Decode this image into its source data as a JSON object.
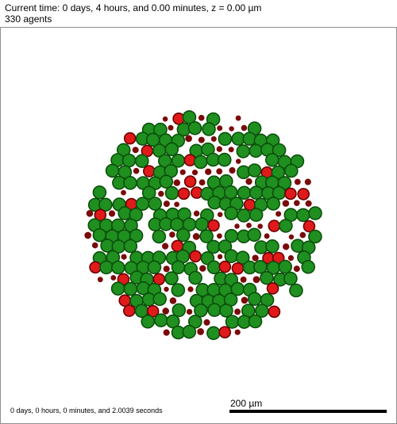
{
  "header": {
    "time_line": "Current time: 0 days, 4 hours, and 0.00 minutes, z = 0.00 µm",
    "agents_line": "330 agents"
  },
  "footer": {
    "elapsed_text": "0 days, 0 hours, 0 minutes, and 2.0039 seconds",
    "scale_label": "200 µm"
  },
  "colors": {
    "green_cell_fill": "#1f8f1f",
    "green_cell_edge": "#0b4f0b",
    "red_cell_fill": "#e01a1a",
    "red_cell_edge": "#6a0000",
    "small_particle": "#7a0a0a",
    "frame_border": "#8f8f8f"
  }
}
